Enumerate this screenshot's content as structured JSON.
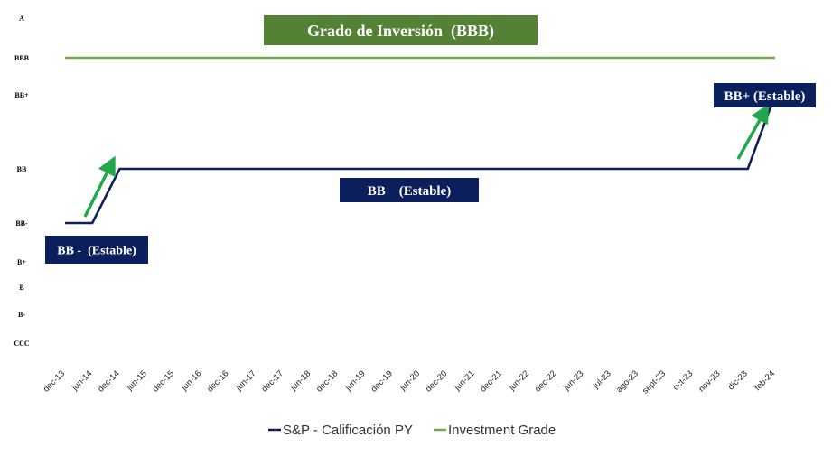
{
  "colors": {
    "rating_line": "#0d1f5a",
    "investment_line": "#70a84a",
    "label_box": "#0b1f5c",
    "banner_box": "#548235",
    "arrow": "#22a84c"
  },
  "chart_data": {
    "type": "line",
    "title": "",
    "y_categories": [
      "A",
      "BBB",
      "BB+",
      "BB",
      "BB-",
      "B+",
      "B",
      "B-",
      "CCC"
    ],
    "categories": [
      "dec-13",
      "jun-14",
      "dec-14",
      "jun-15",
      "dec-15",
      "jun-16",
      "dec-16",
      "jun-17",
      "dec-17",
      "jun-18",
      "dec-18",
      "jun-19",
      "dec-19",
      "jun-20",
      "dec-20",
      "jun-21",
      "dec-21",
      "jun-22",
      "dec-22",
      "jun-23",
      "jul-23",
      "ago-23",
      "sept-23",
      "oct-23",
      "nov-23",
      "dic-23",
      "feb-24"
    ],
    "series": [
      {
        "name": "S&P - Calificación PY",
        "color_key": "rating_line",
        "values": [
          "BB-",
          "BB-",
          "BB",
          "BB",
          "BB",
          "BB",
          "BB",
          "BB",
          "BB",
          "BB",
          "BB",
          "BB",
          "BB",
          "BB",
          "BB",
          "BB",
          "BB",
          "BB",
          "BB",
          "BB",
          "BB",
          "BB",
          "BB",
          "BB",
          "BB",
          "BB",
          "BB+"
        ]
      },
      {
        "name": "Investment Grade",
        "color_key": "investment_line",
        "values": [
          "BBB",
          "BBB",
          "BBB",
          "BBB",
          "BBB",
          "BBB",
          "BBB",
          "BBB",
          "BBB",
          "BBB",
          "BBB",
          "BBB",
          "BBB",
          "BBB",
          "BBB",
          "BBB",
          "BBB",
          "BBB",
          "BBB",
          "BBB",
          "BBB",
          "BBB",
          "BBB",
          "BBB",
          "BBB",
          "BBB",
          "BBB"
        ]
      }
    ],
    "annotations": [
      {
        "text": "Grado de Inversión  (BBB)",
        "style": "banner"
      },
      {
        "text": "BB -  (Estable)",
        "style": "box"
      },
      {
        "text": "BB    (Estable)",
        "style": "box"
      },
      {
        "text": "BB+ (Estable)",
        "style": "box"
      }
    ],
    "legend_position": "bottom",
    "grid": false
  }
}
